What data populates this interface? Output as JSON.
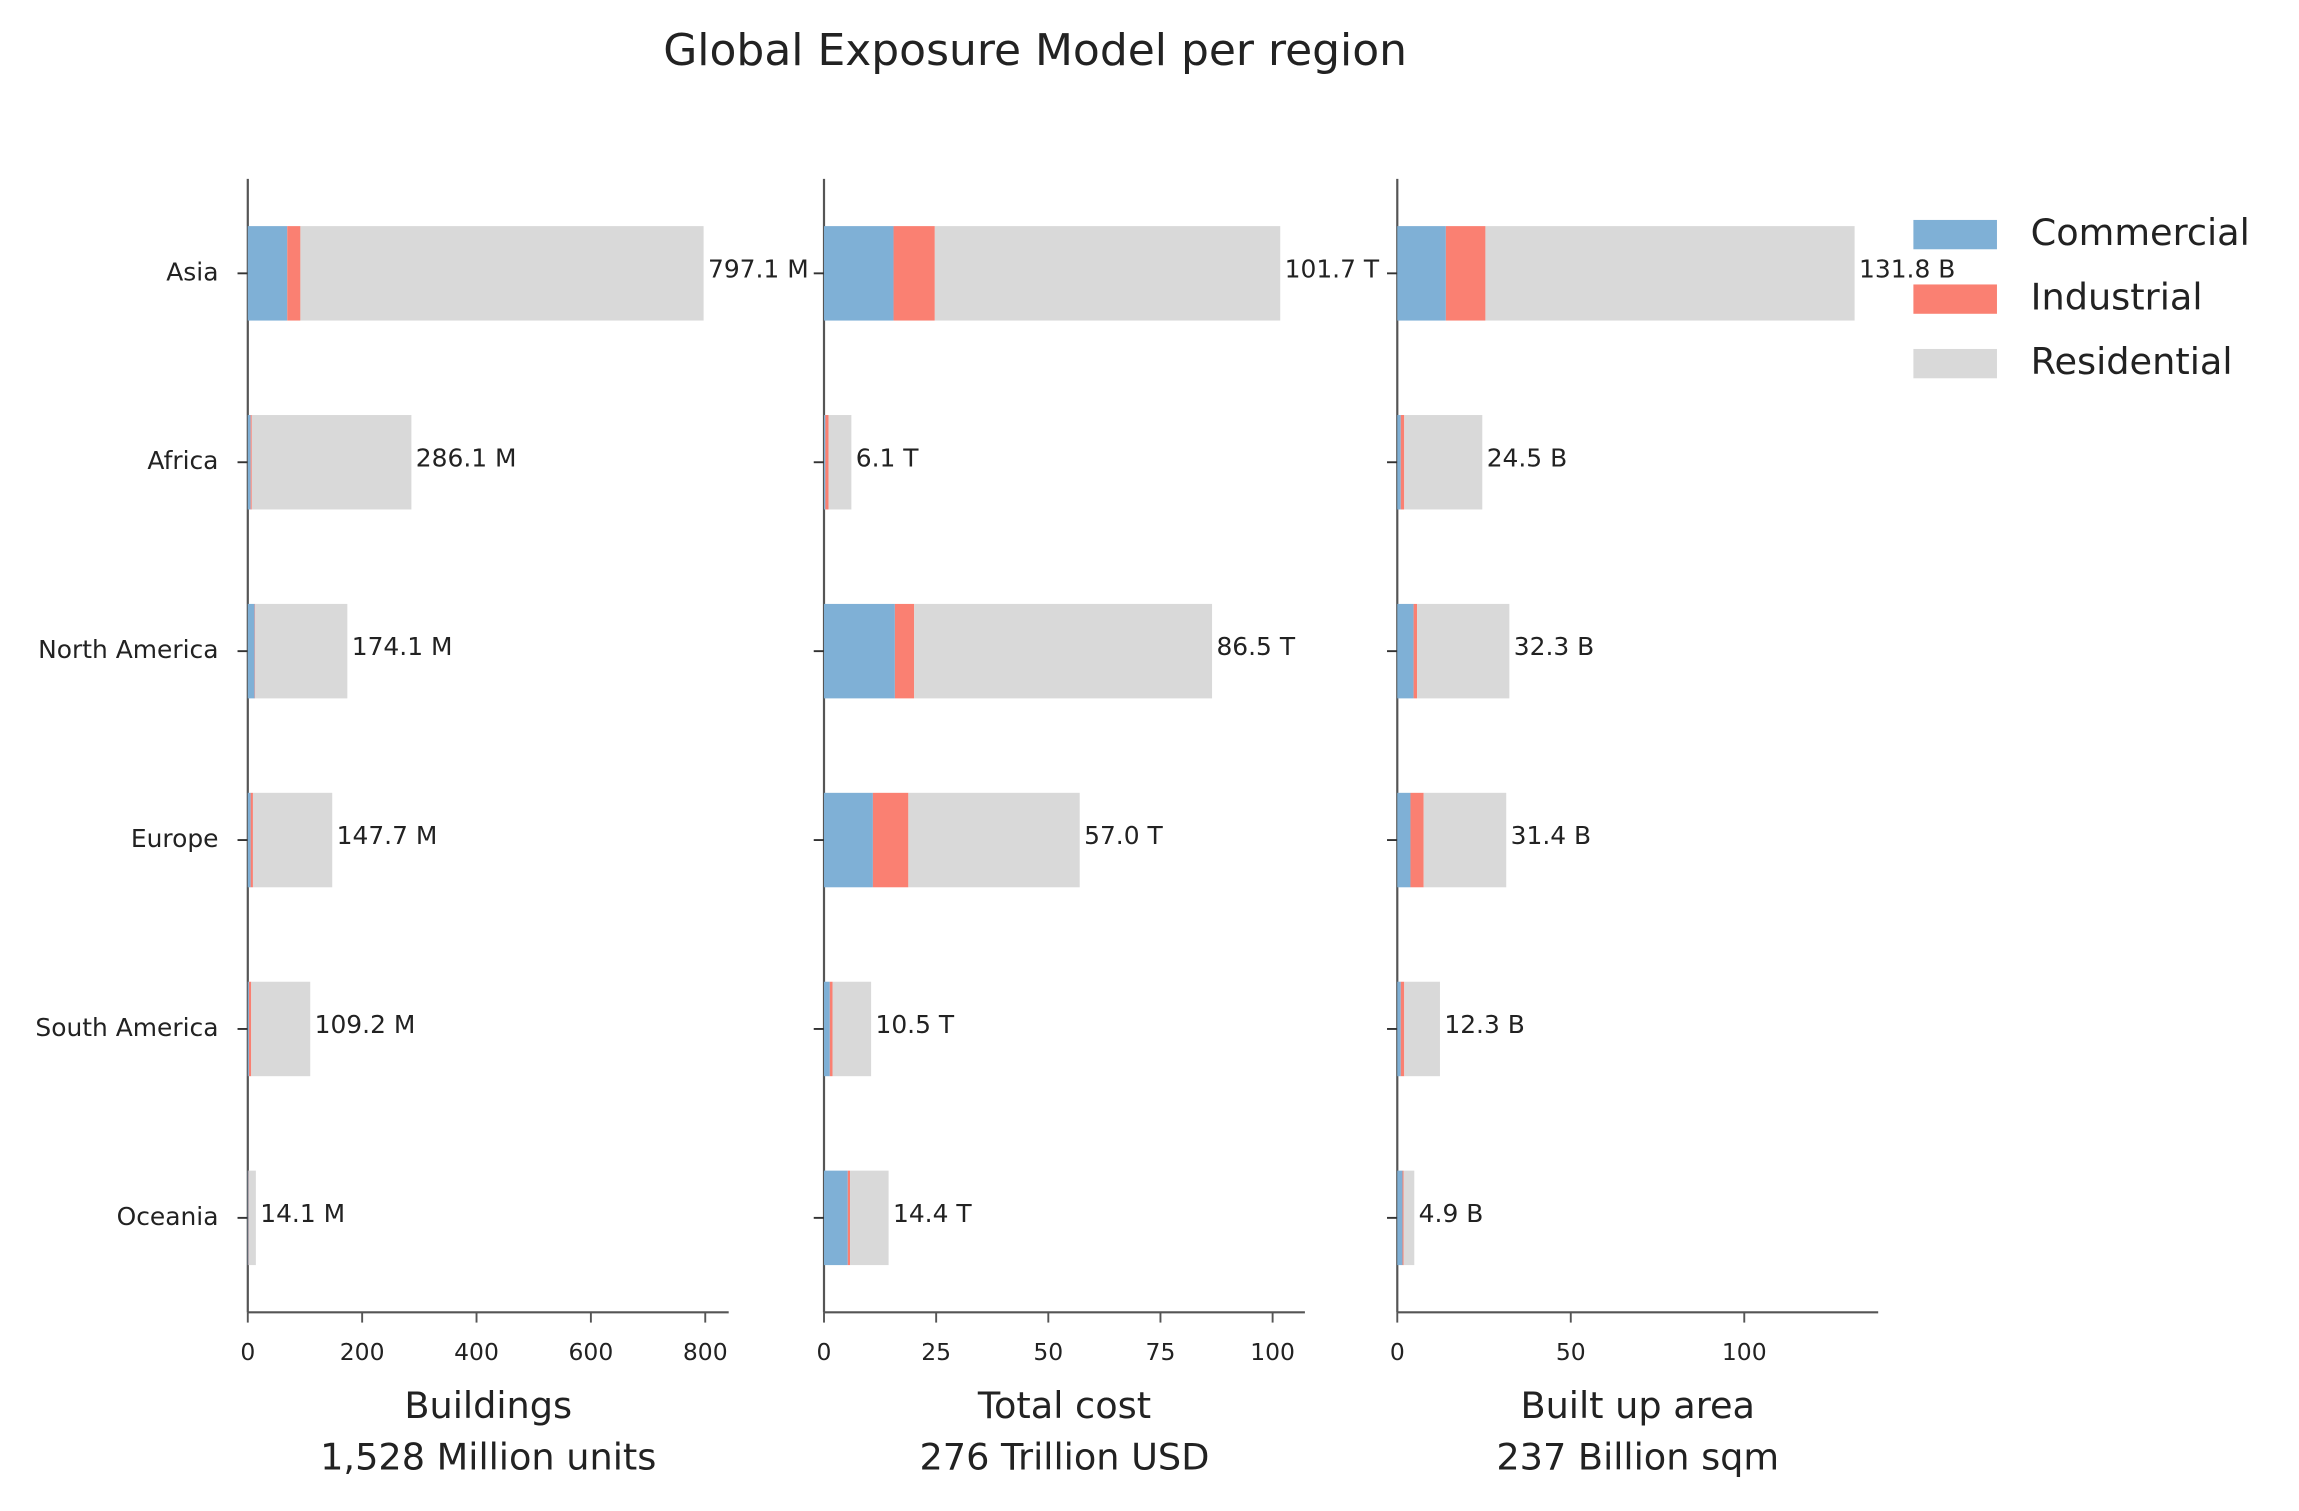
{
  "chart_data": {
    "type": "bar",
    "orientation": "horizontal",
    "stacked": true,
    "title": "Global Exposure Model per region",
    "legend": "upper right",
    "categories": [
      "Asia",
      "Africa",
      "North America",
      "Europe",
      "South America",
      "Oceania"
    ],
    "series": [
      {
        "name": "Commercial",
        "color": "#7fb0d6"
      },
      {
        "name": "Industrial",
        "color": "#fa8072"
      },
      {
        "name": "Residential",
        "color": "#d9d9d9"
      }
    ],
    "panels": [
      {
        "xlabel": [
          "Buildings",
          "1,528 Million units"
        ],
        "xlim": [
          0,
          841
        ],
        "xticks": [
          0,
          200,
          400,
          600,
          800
        ],
        "values": [
          [
            69,
            5,
            12,
            5,
            2,
            1
          ],
          [
            23,
            2,
            1,
            4,
            4,
            0.5
          ],
          [
            705.1,
            279.1,
            161.1,
            138.7,
            103.2,
            12.6
          ]
        ],
        "total_labels": [
          "797.1 M",
          "286.1 M",
          "174.1 M",
          "147.7 M",
          "109.2 M",
          "14.1 M"
        ]
      },
      {
        "xlabel": [
          "Total cost",
          "276 Trillion USD"
        ],
        "xlim": [
          0,
          107.2
        ],
        "xticks": [
          0,
          25,
          50,
          75,
          100
        ],
        "values": [
          [
            15.5,
            0.3,
            15.8,
            10.9,
            1.3,
            5.3
          ],
          [
            9.2,
            0.7,
            4.3,
            7.9,
            0.6,
            0.5
          ],
          [
            77.0,
            5.1,
            66.4,
            38.2,
            8.6,
            8.6
          ]
        ],
        "total_labels": [
          "101.7 T",
          "6.1 T",
          "86.5 T",
          "57.0 T",
          "10.5 T",
          "14.4 T"
        ]
      },
      {
        "xlabel": [
          "Built up area",
          "237 Billion sqm"
        ],
        "xlim": [
          0,
          138.6
        ],
        "xticks": [
          0,
          50,
          100
        ],
        "values": [
          [
            14,
            1,
            4.7,
            3.8,
            1,
            1.5
          ],
          [
            11.4,
            1,
            1,
            3.8,
            1,
            0.3
          ],
          [
            106.4,
            22.5,
            26.6,
            23.8,
            10.3,
            3.1
          ]
        ],
        "total_labels": [
          "131.8 B",
          "24.5 B",
          "32.3 B",
          "31.4 B",
          "12.3 B",
          "4.9 B"
        ]
      }
    ]
  }
}
